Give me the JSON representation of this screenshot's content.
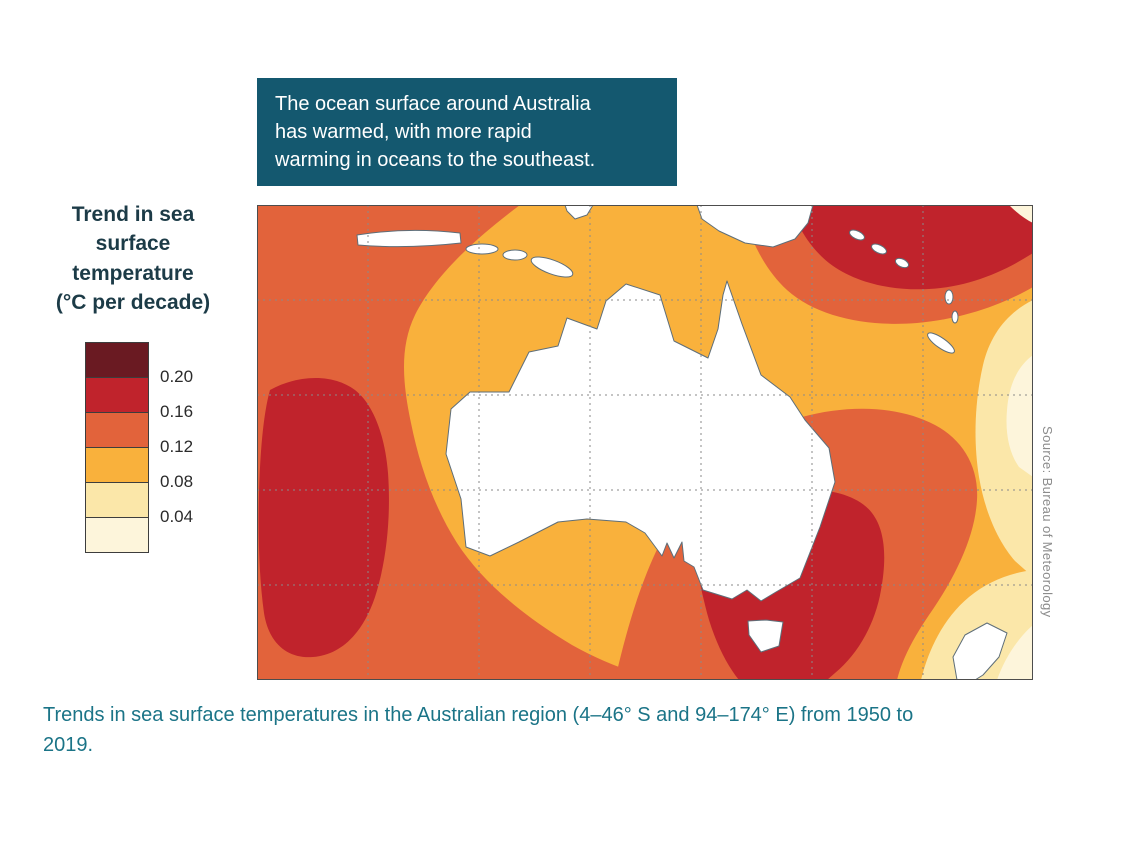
{
  "theme": {
    "annotation_bg": "#14586F",
    "caption_color": "#1B7487",
    "legend_title_color": "#1C3B47",
    "source_color": "#8C8C8C"
  },
  "annotation_box": {
    "text": "The ocean surface around Australia has warmed, with more rapid warming in oceans to the southeast.",
    "lines": [
      "The ocean surface around Australia",
      "has warmed, with more rapid",
      "warming in oceans to the southeast."
    ]
  },
  "legend": {
    "title": "Trend in sea surface temperature (°C per decade)",
    "title_lines": [
      "Trend in sea",
      "surface",
      "temperature",
      "(°C per decade)"
    ],
    "labels": [
      "0.20",
      "0.16",
      "0.12",
      "0.08",
      "0.04"
    ],
    "swatch_colors": [
      "#6A1A22",
      "#C0232C",
      "#E2633B",
      "#F9B13C",
      "#FBE7A9",
      "#FDF5DB"
    ]
  },
  "map": {
    "colors": {
      "c_gt_020": "#6A1A22",
      "c_016_020": "#C0232C",
      "c_012_016": "#E2633B",
      "c_008_012": "#F9B13C",
      "c_004_008": "#FBE7A9",
      "c_lt_004": "#FDF5DB",
      "land": "#FFFFFF",
      "land_outline": "#5E6E79",
      "grid": "#8A8A8A",
      "border": "#4D4D4D"
    }
  },
  "source": {
    "text": "Source: Bureau of Meteorology"
  },
  "caption": {
    "text": "Trends in sea surface temperatures in the Australian region (4–46° S and 94–174° E) from 1950 to 2019."
  },
  "chart_data": {
    "type": "heatmap",
    "subtype": "filled-contour-map",
    "title": "Trend in sea surface temperature (°C per decade)",
    "annotation": "The ocean surface around Australia has warmed, with more rapid warming in oceans to the southeast.",
    "caption": "Trends in sea surface temperatures in the Australian region (4–46° S and 94–174° E) from 1950 to 2019.",
    "source": "Bureau of Meteorology",
    "units": "°C per decade",
    "region": {
      "latitude_south": [
        4,
        46
      ],
      "longitude_east": [
        94,
        174
      ]
    },
    "period": [
      1950,
      2019
    ],
    "legend_position": "left",
    "grid": "dashed graticule",
    "color_scale": [
      {
        "range": "> 0.20",
        "color": "#6A1A22"
      },
      {
        "range": "0.16–0.20",
        "color": "#C0232C"
      },
      {
        "range": "0.12–0.16",
        "color": "#E2633B"
      },
      {
        "range": "0.08–0.12",
        "color": "#F9B13C"
      },
      {
        "range": "0.04–0.08",
        "color": "#FBE7A9"
      },
      {
        "range": "< 0.04",
        "color": "#FDF5DB"
      }
    ],
    "regions_observed": [
      {
        "area": "Tasman Sea / southeast of Australia around Tasmania",
        "trend_c_per_decade": "0.16–0.20"
      },
      {
        "area": "Indian Ocean west of Western Australia (far west of map)",
        "trend_c_per_decade": "0.16–0.20"
      },
      {
        "area": "Northeast of Australia toward Solomon Islands (top right)",
        "trend_c_per_decade": "0.16–0.20"
      },
      {
        "area": "Broad belt around southwest, south and southeast of the continent",
        "trend_c_per_decade": "0.12–0.16"
      },
      {
        "area": "Most remaining ocean in the region",
        "trend_c_per_decade": "0.08–0.12"
      },
      {
        "area": "Far eastern edge of map (toward 174° E)",
        "trend_c_per_decade": "0.04–0.08 with small patches < 0.04"
      }
    ]
  }
}
